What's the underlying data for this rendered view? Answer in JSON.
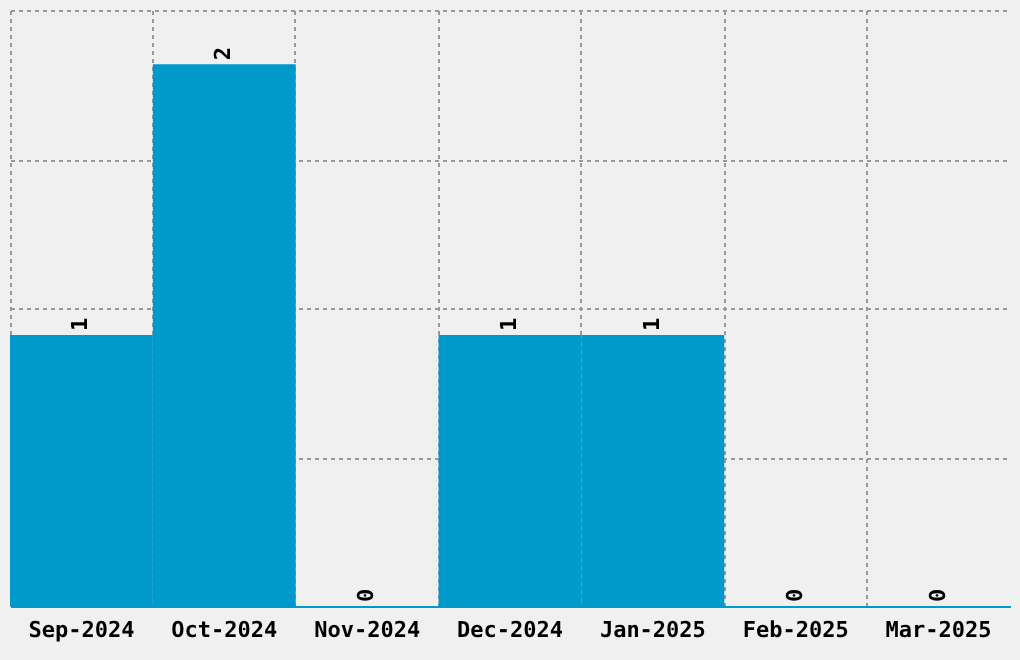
{
  "chart_data": {
    "type": "bar",
    "categories": [
      "Sep-2024",
      "Oct-2024",
      "Nov-2024",
      "Dec-2024",
      "Jan-2025",
      "Feb-2025",
      "Mar-2025"
    ],
    "values": [
      1,
      2,
      0,
      1,
      1,
      0,
      0
    ],
    "color": "#0099cc",
    "ylim": [
      0,
      2.2
    ],
    "yticks": [
      {
        "value": 0,
        "label": null
      },
      {
        "value": 0.55,
        "label": null
      },
      {
        "value": 1.1,
        "label": null
      },
      {
        "value": 1.65,
        "label": null
      },
      {
        "value": 2.2,
        "label": null
      }
    ],
    "grid": true,
    "tick_labels": "x",
    "data_labels": true
  }
}
